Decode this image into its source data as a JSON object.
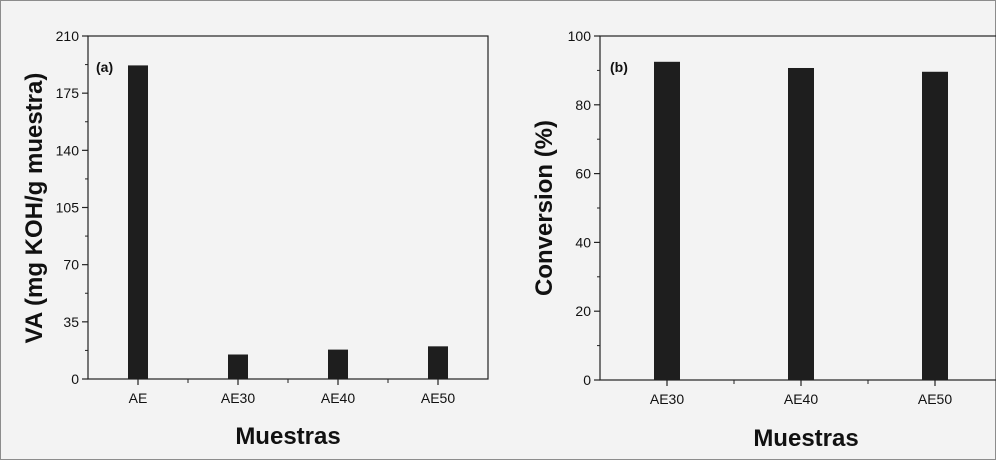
{
  "chart_data": [
    {
      "type": "bar",
      "panel_label": "(a)",
      "categories": [
        "AE",
        "AE30",
        "AE40",
        "AE50"
      ],
      "values": [
        192,
        15,
        18,
        20
      ],
      "xlabel": "Muestras",
      "ylabel": "VA (mg KOH/g muestra)",
      "ylim": [
        0,
        210
      ],
      "yticks": [
        0,
        35,
        70,
        105,
        140,
        175,
        210
      ],
      "grid": false,
      "bar_color": "#1e1e1e"
    },
    {
      "type": "bar",
      "panel_label": "(b)",
      "categories": [
        "AE30",
        "AE40",
        "AE50"
      ],
      "values": [
        92.5,
        90.7,
        89.6
      ],
      "xlabel": "Muestras",
      "ylabel": "Conversion (%)",
      "ylim": [
        0,
        100
      ],
      "yticks": [
        0,
        20,
        40,
        60,
        80,
        100
      ],
      "grid": false,
      "bar_color": "#1e1e1e"
    }
  ]
}
